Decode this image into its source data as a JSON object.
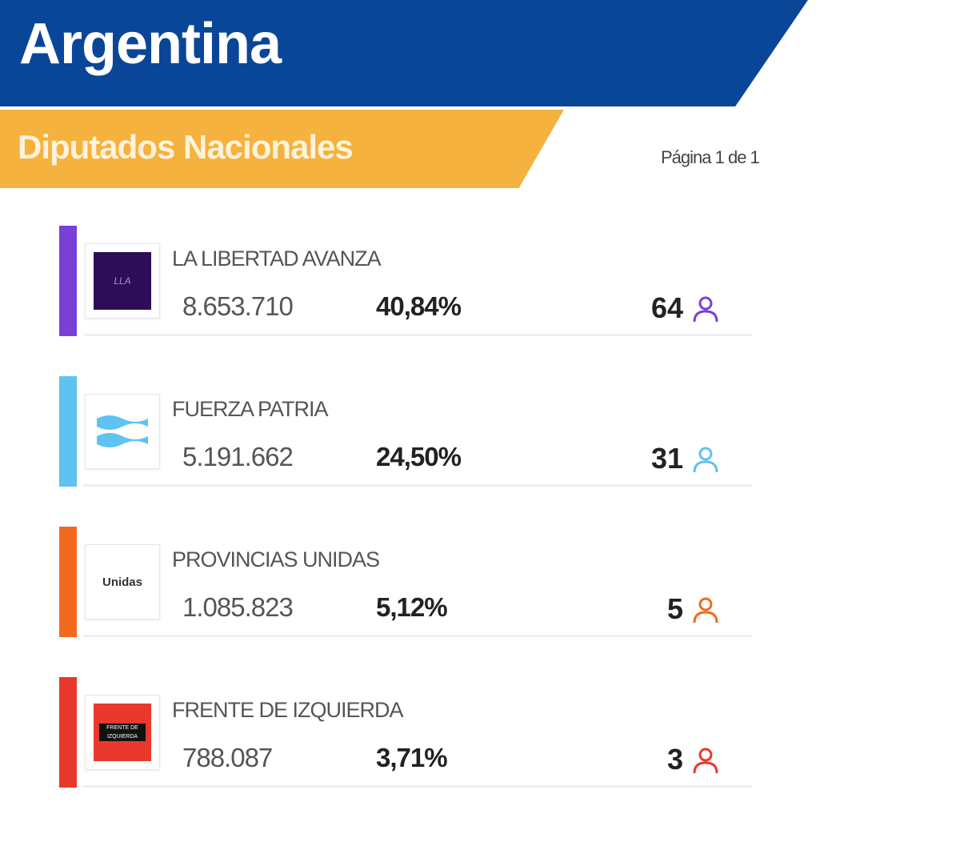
{
  "header": {
    "title": "Argentina",
    "subtitle": "Diputados Nacionales",
    "page_indicator": "Página 1 de 1"
  },
  "colors": {
    "header_blue": "#0a4698",
    "header_orange": "#f6b23e"
  },
  "parties": [
    {
      "name": "LA LIBERTAD AVANZA",
      "votes": "8.653.710",
      "percent": "40,84%",
      "seats": "64",
      "color": "#7a3fd6",
      "icon": "person-icon",
      "logo": "La Libertad Avanza"
    },
    {
      "name": "FUERZA PATRIA",
      "votes": "5.191.662",
      "percent": "24,50%",
      "seats": "31",
      "color": "#5fc2f0",
      "icon": "person-icon",
      "logo": "flag"
    },
    {
      "name": "PROVINCIAS UNIDAS",
      "votes": "1.085.823",
      "percent": "5,12%",
      "seats": "5",
      "color": "#f26a1b",
      "icon": "person-icon",
      "logo": "Unidas"
    },
    {
      "name": "FRENTE DE IZQUIERDA",
      "votes": "788.087",
      "percent": "3,71%",
      "seats": "3",
      "color": "#e8392c",
      "icon": "person-icon",
      "logo": "Frente de Izquierda"
    }
  ]
}
